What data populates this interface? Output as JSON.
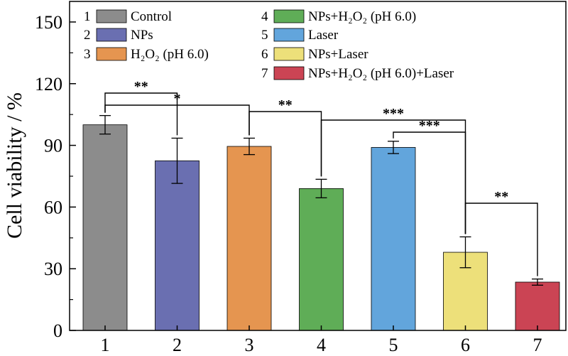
{
  "chart_data": {
    "type": "bar",
    "title": "",
    "xlabel": "",
    "ylabel": "Cell viability / %",
    "ylim": [
      0,
      160
    ],
    "yticks": [
      "0",
      "30",
      "60",
      "90",
      "120",
      "150"
    ],
    "categories": [
      "1",
      "2",
      "3",
      "4",
      "5",
      "6",
      "7"
    ],
    "values": [
      100,
      82.5,
      89.5,
      69,
      89,
      38,
      23.5
    ],
    "errors": [
      4.5,
      11,
      4,
      4.5,
      3,
      7.5,
      1.5
    ],
    "colors": [
      "#8c8c8c",
      "#6a6fb1",
      "#e59550",
      "#5fad57",
      "#62a5dc",
      "#ede07a",
      "#cb4454"
    ],
    "legend": {
      "placement": "top-left",
      "entries": [
        {
          "num": "1",
          "label": "Control"
        },
        {
          "num": "2",
          "label": "NPs"
        },
        {
          "num": "3",
          "label": "H₂O₂ (pH 6.0)"
        },
        {
          "num": "4",
          "label": "NPs+H₂O₂ (pH 6.0)"
        },
        {
          "num": "5",
          "label": "Laser"
        },
        {
          "num": "6",
          "label": "NPs+Laser"
        },
        {
          "num": "7",
          "label": "NPs+H₂O₂ (pH 6.0)+Laser"
        }
      ]
    },
    "significance": [
      {
        "from": "1",
        "to": "2",
        "label": "**"
      },
      {
        "from": "1",
        "to": "3",
        "label": "*"
      },
      {
        "from": "3",
        "to": "4",
        "label": "**"
      },
      {
        "from": "4",
        "to": "6",
        "label": "***"
      },
      {
        "from": "5",
        "to": "6",
        "label": "***"
      },
      {
        "from": "6",
        "to": "7",
        "label": "**"
      }
    ]
  }
}
